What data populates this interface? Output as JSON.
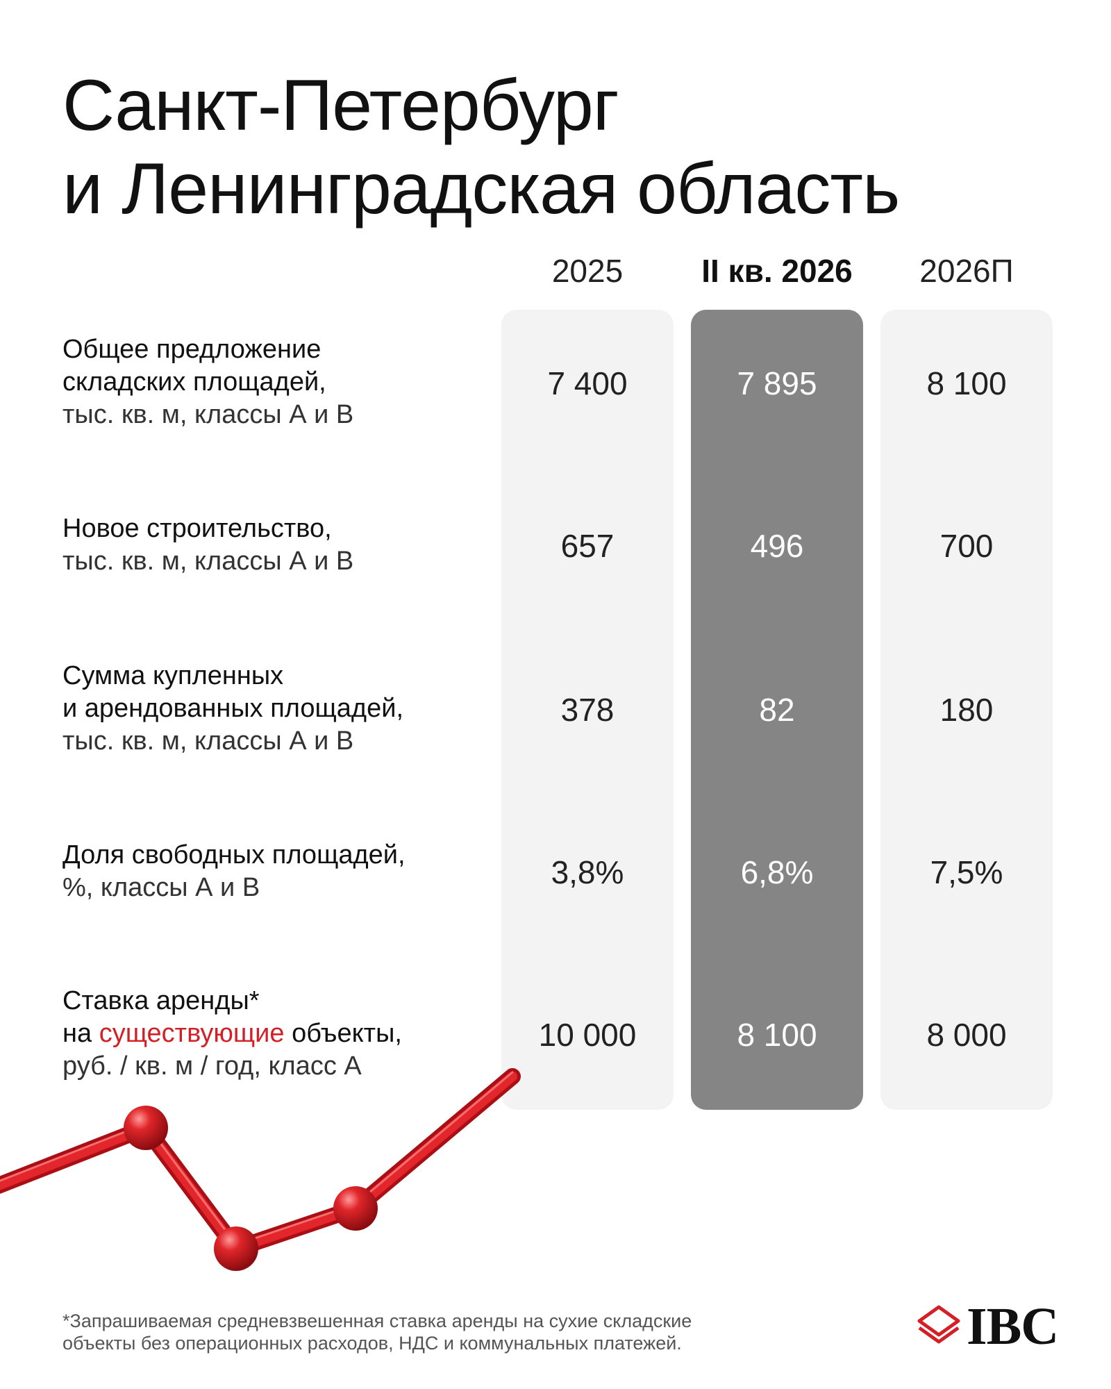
{
  "title": {
    "line1": "Санкт-Петербург",
    "line2": "и Ленинградская область"
  },
  "columns": [
    "2025",
    "II кв. 2026",
    "2026П"
  ],
  "rows": [
    {
      "label_lines": [
        "Общее предложение",
        "складских площадей,"
      ],
      "unit": "тыс. кв. м, классы А и В",
      "values": [
        "7 400",
        "7 895",
        "8 100"
      ]
    },
    {
      "label_lines": [
        "Новое строительство,"
      ],
      "unit": "тыс. кв. м, классы А и В",
      "values": [
        "657",
        "496",
        "700"
      ]
    },
    {
      "label_lines": [
        "Сумма купленных",
        "и арендованных площадей,"
      ],
      "unit": "тыс. кв. м, классы А и В",
      "values": [
        "378",
        "82",
        "180"
      ]
    },
    {
      "label_lines": [
        "Доля свободных площадей,"
      ],
      "unit": "%, классы А и В",
      "values": [
        "3,8%",
        "6,8%",
        "7,5%"
      ]
    },
    {
      "label_line1": "Ставка аренды*",
      "label_line2_prefix": "на ",
      "label_line2_accent": "существующие",
      "label_line2_suffix": " объекты,",
      "unit": "руб. / кв. м / год, класс А",
      "values": [
        "10 000",
        "8 100",
        "8 000"
      ]
    }
  ],
  "footnote": {
    "line1": "*Запрашиваемая средневзвешенная ставка аренды на сухие складские",
    "line2": "объекты без операционных расходов, НДС и коммунальных платежей."
  },
  "logo": {
    "text": "IBC",
    "icon": "ibc-stacked-layers-icon"
  },
  "colors": {
    "accent": "#d31f26",
    "highlight_column": "#858585",
    "column_bg": "#f3f3f3",
    "text": "#111111"
  }
}
